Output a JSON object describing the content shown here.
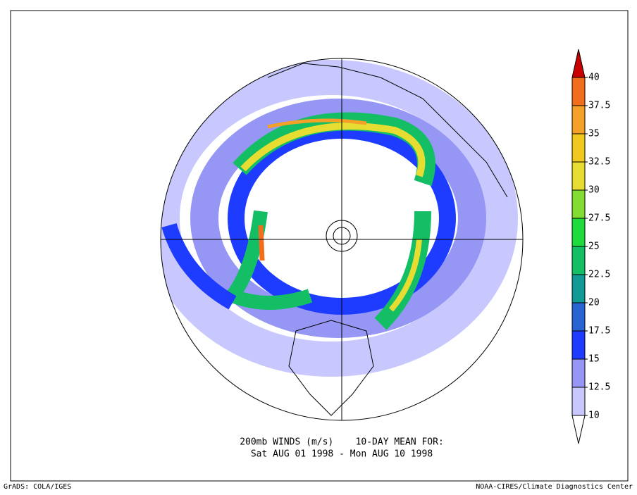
{
  "title_line1": "200mb WINDS (m/s)    10-DAY MEAN FOR:",
  "title_line2": "Sat AUG 01 1998 - Mon AUG 10 1998",
  "footer_left": "GrADS: COLA/IGES",
  "footer_right": "NOAA-CIRES/Climate Diagnostics Center",
  "colorbar": {
    "levels": [
      10,
      12.5,
      15,
      17.5,
      20,
      22.5,
      25,
      27.5,
      30,
      32.5,
      35,
      37.5,
      40
    ],
    "colors": [
      "#ffffff",
      "#c8c8ff",
      "#9696f5",
      "#1e3cff",
      "#2864d2",
      "#129a96",
      "#14be64",
      "#1edc3c",
      "#82dc32",
      "#e6dc32",
      "#f0c81e",
      "#f5a028",
      "#f06e1e",
      "#c80000"
    ]
  }
}
